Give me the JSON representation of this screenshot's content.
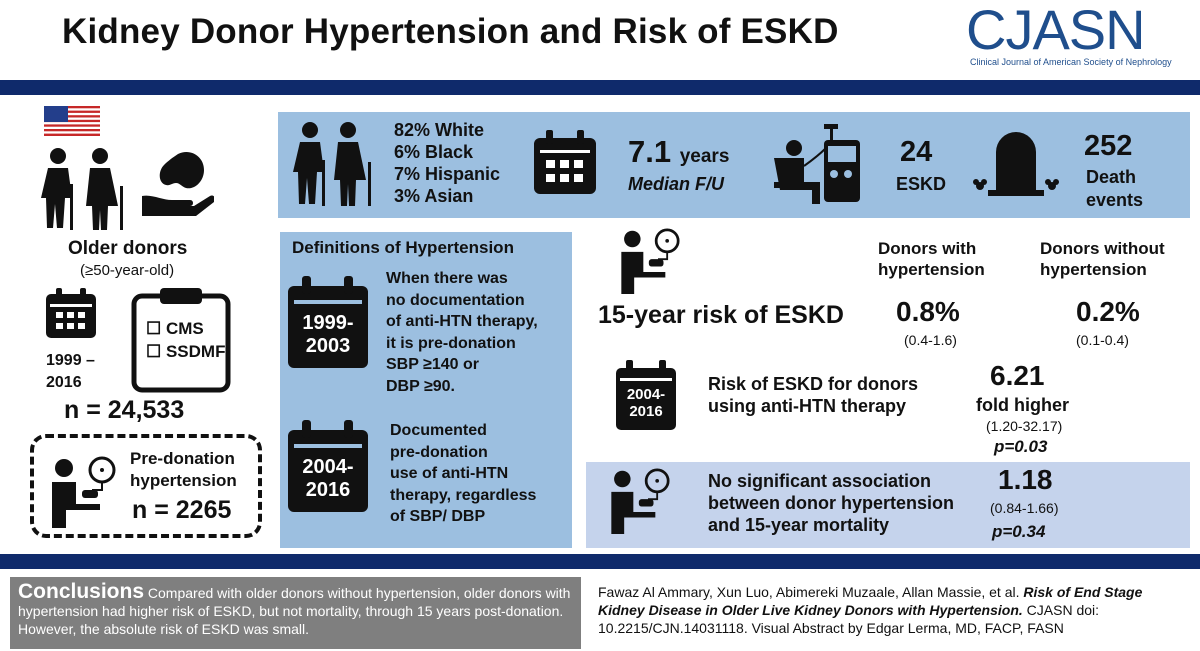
{
  "header": {
    "title": "Kidney Donor Hypertension and Risk of ESKD",
    "logo": "CJASN",
    "logo_subtitle": "Clinical Journal of American Society of Nephrology"
  },
  "left": {
    "donor_title": "Older donors",
    "donor_age": "(≥50-year-old)",
    "years": "1999 – 2016",
    "years_line1": "1999 –",
    "years_line2": "2016",
    "sources": [
      "CMS",
      "SSDMF"
    ],
    "n_total": "n = 24,533",
    "pre_donation_label_1": "Pre-donation",
    "pre_donation_label_2": "hypertension",
    "n_pre": "n = 2265"
  },
  "stats": {
    "demographics": [
      "82% White",
      "6% Black",
      "7% Hispanic",
      "3% Asian"
    ],
    "followup_value": "7.1",
    "followup_unit": "years",
    "followup_label": "Median F/U",
    "eskd_count": "24",
    "eskd_label": "ESKD",
    "death_count": "252",
    "death_label_1": "Death",
    "death_label_2": "events"
  },
  "definitions": {
    "title": "Definitions of Hypertension",
    "period1_a": "1999-",
    "period1_b": "2003",
    "period1_text": [
      "When there was",
      "no documentation",
      "of anti-HTN therapy,",
      "it is pre-donation",
      "SBP ≥140 or",
      "DBP ≥90."
    ],
    "period2_a": "2004-",
    "period2_b": "2016",
    "period2_text": [
      "Documented",
      "pre-donation",
      "use of anti-HTN",
      "therapy, regardless",
      "of SBP/ DBP"
    ]
  },
  "risk": {
    "col_with_1": "Donors with",
    "col_with_2": "hypertension",
    "col_without_1": "Donors without",
    "col_without_2": "hypertension",
    "risk_label": "15-year risk of ESKD",
    "risk_with": "0.8%",
    "risk_with_ci": "(0.4-1.6)",
    "risk_without": "0.2%",
    "risk_without_ci": "(0.1-0.4)",
    "badge_a": "2004-",
    "badge_b": "2016",
    "antihtn_label_1": "Risk of ESKD for donors",
    "antihtn_label_2": "using anti-HTN therapy",
    "fold_value": "6.21",
    "fold_label": "fold higher",
    "fold_ci": "(1.20-32.17)",
    "fold_p": "p=0.03"
  },
  "mortality": {
    "text_1": "No significant association",
    "text_2": "between donor hypertension",
    "text_3": "and 15-year mortality",
    "value": "1.18",
    "ci": "(0.84-1.66)",
    "p": "p=0.34"
  },
  "footer": {
    "conclusion_head": "Conclusions",
    "conclusion_text": " Compared with older donors without hypertension, older donors with hypertension had higher risk of ESKD, but not mortality, through 15 years post-donation. However, the absolute risk of ESKD was small.",
    "citation_authors": "Fawaz Al Ammary, Xun Luo, Abimereki Muzaale, Allan Massie, et al. ",
    "citation_title": "Risk of End Stage Kidney Disease in Older Live Kidney Donors with Hypertension.",
    "citation_rest": " CJASN doi: 10.2215/CJN.14031118. Visual Abstract by Edgar Lerma, MD, FACP, FASN"
  },
  "colors": {
    "navy": "#0f2a6b",
    "panel_blue": "#9cbfe0",
    "panel_lilac": "#c5d3ec",
    "logo_blue": "#1f4e8c",
    "conclusion_gray": "#7f7f7f"
  }
}
